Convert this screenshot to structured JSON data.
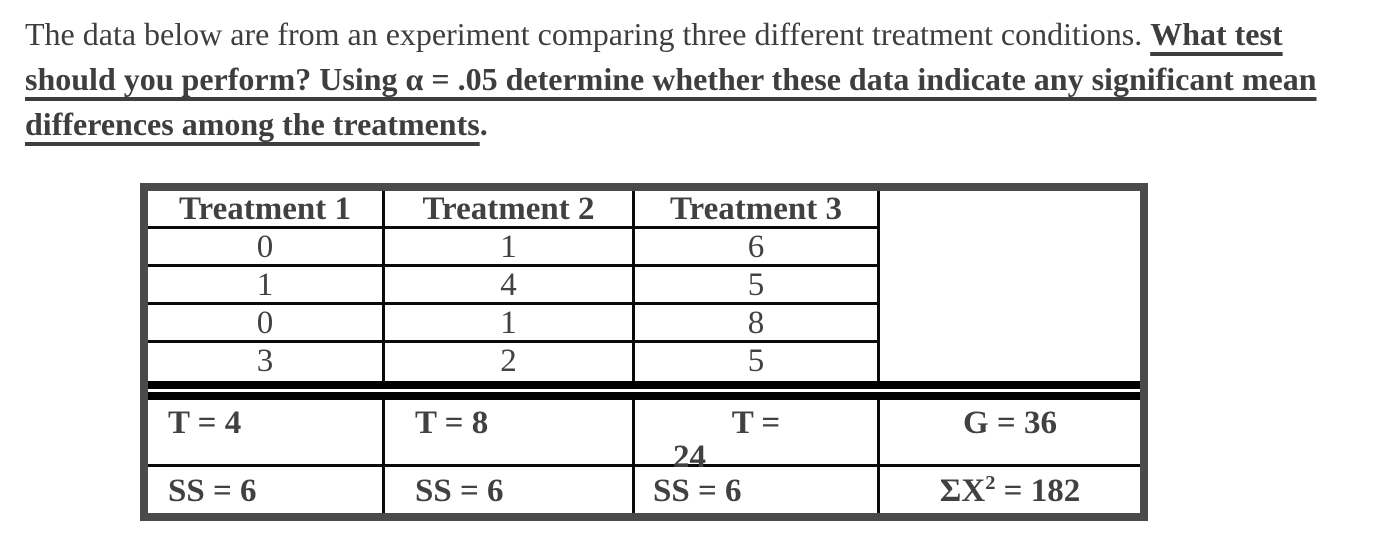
{
  "problem": {
    "intro": "The data below are from an experiment comparing three different treatment conditions. ",
    "q_line1": "What test",
    "q_line2": "should you perform? Using α = .05 determine whether these data indicate any significant mean",
    "q_line3": "differences among the treatments",
    "period": "."
  },
  "table": {
    "headers": [
      "Treatment 1",
      "Treatment 2",
      "Treatment 3"
    ],
    "rows": [
      [
        "0",
        "1",
        "6"
      ],
      [
        "1",
        "4",
        "5"
      ],
      [
        "0",
        "1",
        "8"
      ],
      [
        "3",
        "2",
        "5"
      ]
    ],
    "t_row": {
      "t1": "T = 4",
      "t2": "T = 8",
      "t3_line1": "T =",
      "t3_line2": "24",
      "grand": "G = 36"
    },
    "ss_row": {
      "ss1": "SS = 6",
      "ss2": "SS = 6",
      "ss3": "SS = 6",
      "sum_prefix": "ΣX",
      "sum_sup": "2",
      "sum_suffix": " = 182"
    }
  },
  "colors": {
    "text": "#3e3e3e",
    "outer_border": "#4a4a4c",
    "inner_line": "#0a0a0a",
    "double_line": "#000000",
    "background": "#ffffff"
  }
}
